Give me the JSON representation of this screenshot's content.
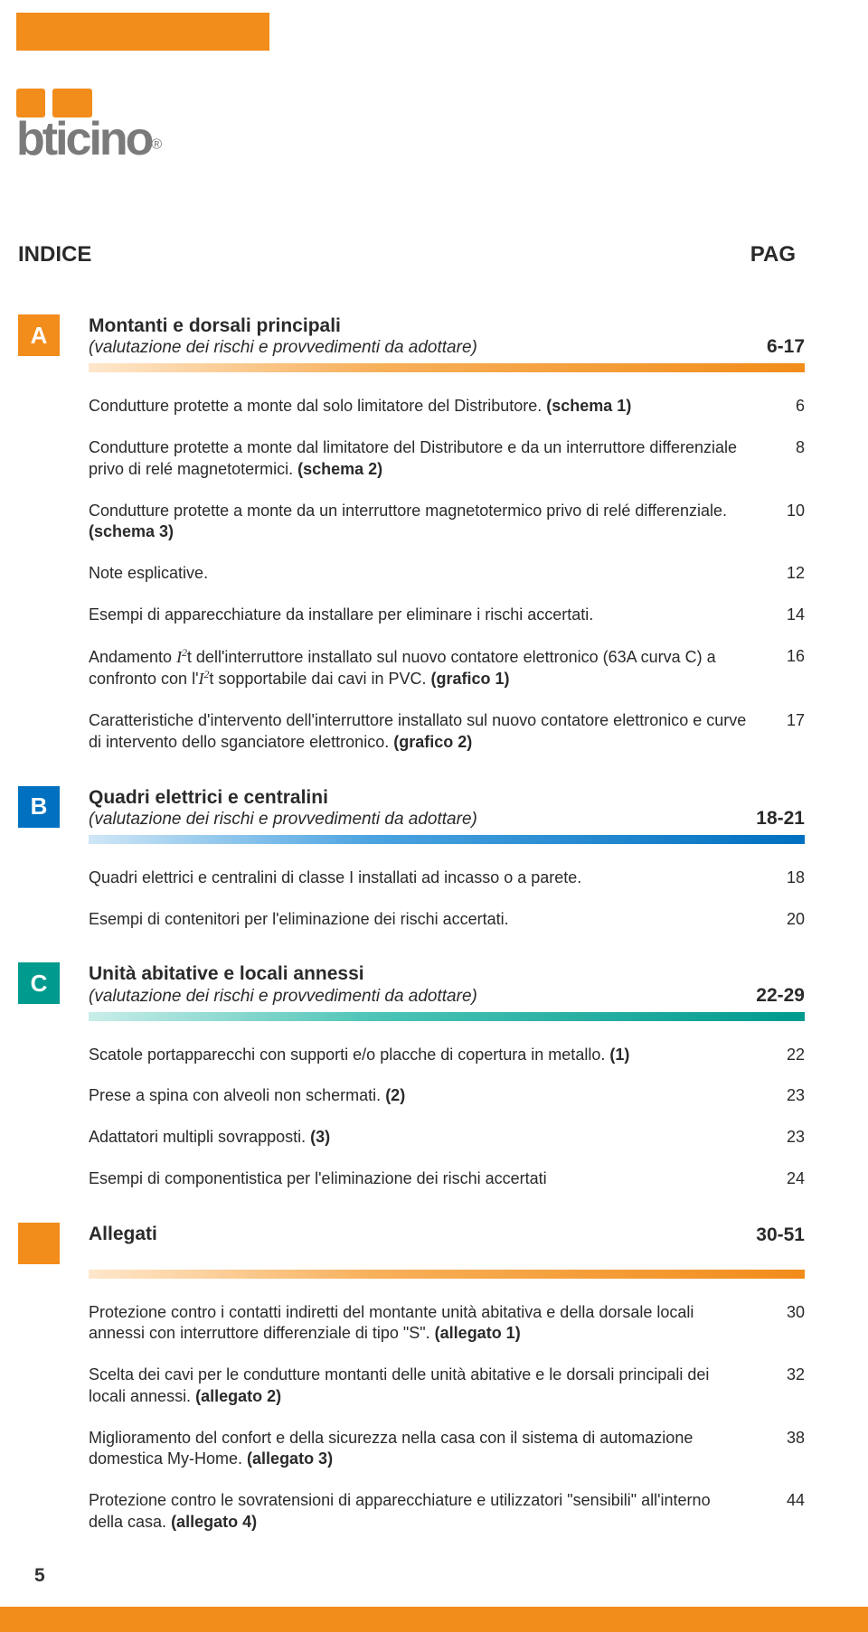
{
  "colors": {
    "orange": "#f28c1a",
    "blue": "#0070c0",
    "teal": "#009a8e",
    "text": "#2a2a2a",
    "logo_gray": "#7a7a7a",
    "background": "#ffffff"
  },
  "logo": {
    "text": "bticino",
    "reg": "®"
  },
  "header": {
    "left": "INDICE",
    "right": "PAG"
  },
  "sections": [
    {
      "letter": "A",
      "title": "Montanti e dorsali principali",
      "subtitle": "(valutazione dei rischi e provvedimenti da adottare)",
      "pages": "6-17",
      "entries": [
        {
          "text": "Condutture protette a monte dal solo limitatore del Distributore. ",
          "bold": "(schema 1)",
          "page": "6"
        },
        {
          "text": "Condutture protette a monte dal limitatore del Distributore e da un interruttore differenziale privo di relé magnetotermici. ",
          "bold": "(schema 2)",
          "page": "8"
        },
        {
          "text": "Condutture protette a monte da un interruttore magnetotermico privo di relé differenziale. ",
          "bold": "(schema 3)",
          "page": "10"
        },
        {
          "text": "Note esplicative.",
          "page": "12"
        },
        {
          "text": "Esempi di apparecchiature da installare per eliminare i rischi accertati.",
          "page": "14"
        },
        {
          "i2t_prefix": "Andamento ",
          "i2t_mid": "t dell'interruttore installato sul nuovo contatore elettronico (63A curva C) a confronto con l'",
          "i2t_suffix": "t sopportabile dai cavi in PVC. ",
          "bold": "(grafico 1)",
          "page": "16"
        },
        {
          "text": "Caratteristiche d'intervento dell'interruttore installato sul nuovo contatore elettronico e curve di intervento dello sganciatore elettronico. ",
          "bold": "(grafico 2)",
          "page": "17"
        }
      ]
    },
    {
      "letter": "B",
      "title": "Quadri elettrici e centralini",
      "subtitle": "(valutazione dei rischi e provvedimenti da adottare)",
      "pages": "18-21",
      "entries": [
        {
          "text": "Quadri elettrici e centralini di classe I installati ad incasso o a parete.",
          "page": "18"
        },
        {
          "text": "Esempi di contenitori per l'eliminazione dei rischi accertati.",
          "page": "20"
        }
      ]
    },
    {
      "letter": "C",
      "title": "Unità abitative e locali annessi",
      "subtitle": "(valutazione dei rischi e provvedimenti da adottare)",
      "pages": "22-29",
      "entries": [
        {
          "text": "Scatole portapparecchi con supporti e/o placche di copertura in metallo. ",
          "bold": "(1)",
          "page": "22"
        },
        {
          "text": "Prese a spina con alveoli non schermati. ",
          "bold": "(2)",
          "page": "23"
        },
        {
          "text": "Adattatori multipli sovrapposti. ",
          "bold": "(3)",
          "page": "23"
        },
        {
          "text": "Esempi di componentistica per l'eliminazione dei rischi accertati",
          "page": "24"
        }
      ]
    },
    {
      "letter": "",
      "title": "Allegati",
      "subtitle": "",
      "pages": "30-51",
      "entries": [
        {
          "text": "Protezione contro i contatti indiretti del montante unità abitativa e della dorsale locali annessi con interruttore differenziale di tipo \"S\". ",
          "bold": "(allegato 1)",
          "page": "30"
        },
        {
          "text": "Scelta dei cavi per le condutture montanti delle unità abitative e le dorsali principali dei locali annessi. ",
          "bold": "(allegato 2)",
          "page": "32"
        },
        {
          "text": "Miglioramento del confort e della sicurezza nella casa con il sistema di automazione domestica My-Home. ",
          "bold": "(allegato 3)",
          "page": "38"
        },
        {
          "text": "Protezione contro le sovratensioni di apparecchiature e utilizzatori \"sensibili\" all'interno della casa. ",
          "bold": "(allegato 4)",
          "page": "44"
        }
      ]
    }
  ],
  "pagefoot": "5"
}
